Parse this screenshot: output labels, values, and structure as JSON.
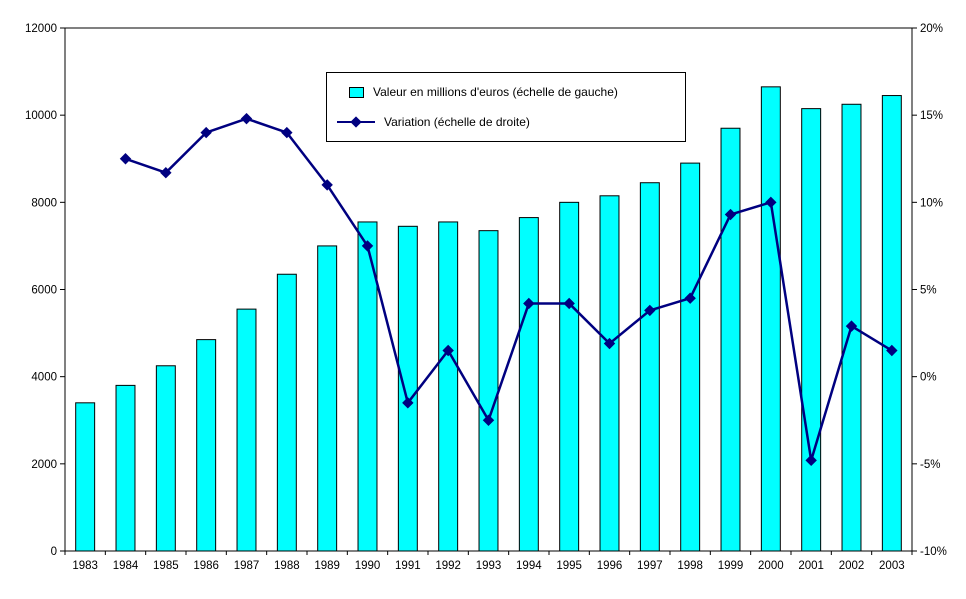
{
  "chart_data": {
    "type": "bar",
    "title": "",
    "categories": [
      "1983",
      "1984",
      "1985",
      "1986",
      "1987",
      "1988",
      "1989",
      "1990",
      "1991",
      "1992",
      "1993",
      "1994",
      "1995",
      "1996",
      "1997",
      "1998",
      "1999",
      "2000",
      "2001",
      "2002",
      "2003"
    ],
    "series": [
      {
        "name": "Valeur en millions d'euros (échelle de gauche)",
        "type": "bar",
        "axis": "left",
        "values": [
          3400,
          3800,
          4250,
          4850,
          5550,
          6350,
          7000,
          7550,
          7450,
          7550,
          7350,
          7650,
          8000,
          8150,
          8450,
          8900,
          9700,
          10650,
          10150,
          10250,
          10450
        ]
      },
      {
        "name": "Variation (échelle de droite)",
        "type": "line",
        "axis": "right",
        "values": [
          null,
          12.5,
          11.7,
          14.0,
          14.8,
          14.0,
          11.0,
          7.5,
          -1.5,
          1.5,
          -2.5,
          4.2,
          4.2,
          1.9,
          3.8,
          4.5,
          9.3,
          10.0,
          -4.8,
          2.9,
          1.5
        ]
      }
    ],
    "left_axis": {
      "min": 0,
      "max": 12000,
      "step": 2000,
      "tick_labels": [
        "0",
        "2000",
        "4000",
        "6000",
        "8000",
        "10000",
        "12000"
      ]
    },
    "right_axis": {
      "min": -10,
      "max": 20,
      "step": 5,
      "tick_labels": [
        "-10%",
        "-5%",
        "0%",
        "5%",
        "10%",
        "15%",
        "20%"
      ]
    },
    "legend": [
      "Valeur en millions d'euros (échelle de gauche)",
      "Variation (échelle de droite)"
    ],
    "legend_position": "inside-top-center",
    "grid": false,
    "colors": {
      "bar_fill": "#00FFFF",
      "bar_border": "#000000",
      "line": "#000080",
      "text": "#000000",
      "background": "#FFFFFF",
      "plot_border": "#000000"
    }
  }
}
